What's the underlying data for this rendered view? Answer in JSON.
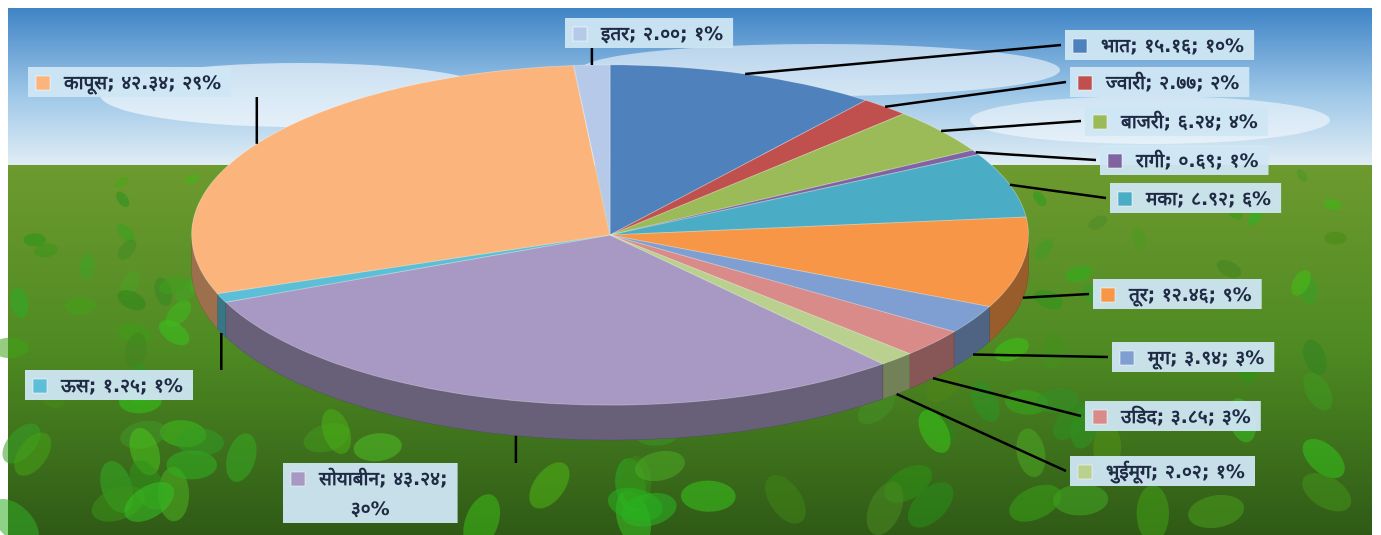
{
  "chart_data": {
    "type": "pie",
    "title": "",
    "style": "3d-exploded-free",
    "slices": [
      {
        "name": "भात",
        "value": 15.16,
        "value_label": "१५.१६",
        "percent_label": "१०%",
        "color": "#4f81bd"
      },
      {
        "name": "ज्वारी",
        "value": 2.77,
        "value_label": "२.७७",
        "percent_label": "२%",
        "color": "#c0504d"
      },
      {
        "name": "बाजरी",
        "value": 6.24,
        "value_label": "६.२४",
        "percent_label": "४%",
        "color": "#9bbb59"
      },
      {
        "name": "रागी",
        "value": 0.69,
        "value_label": "०.६९",
        "percent_label": "१%",
        "color": "#8064a2"
      },
      {
        "name": "मका",
        "value": 8.92,
        "value_label": "८.९२",
        "percent_label": "६%",
        "color": "#4bacc6"
      },
      {
        "name": "तूर",
        "value": 12.46,
        "value_label": "१२.४६",
        "percent_label": "९%",
        "color": "#f79646"
      },
      {
        "name": "मूग",
        "value": 3.94,
        "value_label": "३.९४",
        "percent_label": "३%",
        "color": "#7f9fd3"
      },
      {
        "name": "उडिद",
        "value": 3.85,
        "value_label": "३.८५",
        "percent_label": "३%",
        "color": "#d98b8a"
      },
      {
        "name": "भुईमूग",
        "value": 2.02,
        "value_label": "२.०२",
        "percent_label": "१%",
        "color": "#b9d08e"
      },
      {
        "name": "सोयाबीन",
        "value": 43.24,
        "value_label": "४३.२४",
        "percent_label": "३०%",
        "color": "#a799c3"
      },
      {
        "name": "ऊस",
        "value": 1.25,
        "value_label": "१.२५",
        "percent_label": "१%",
        "color": "#5cbfd7"
      },
      {
        "name": "कापूस",
        "value": 42.34,
        "value_label": "४२.३४",
        "percent_label": "२९%",
        "color": "#fbb47c"
      },
      {
        "name": "इतर",
        "value": 2.0,
        "value_label": "२.००",
        "percent_label": "१%",
        "color": "#b6c9e8"
      }
    ]
  }
}
